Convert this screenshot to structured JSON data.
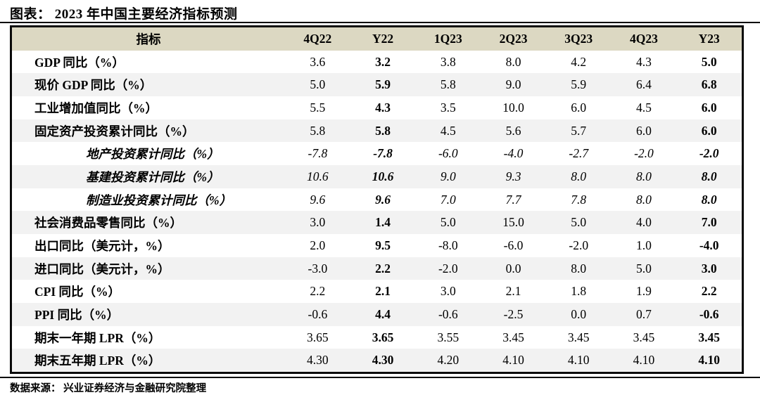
{
  "title": "图表： 2023 年中国主要经济指标预测",
  "source": "数据来源： 兴业证券经济与金融研究院整理",
  "colors": {
    "header_bg": "#dcd8c2",
    "stripe_bg": "#f2f2f2",
    "border": "#0a0a0a",
    "text": "#000000"
  },
  "chart_data": {
    "type": "table",
    "title": "2023 年中国主要经济指标预测",
    "columns": [
      "指标",
      "4Q22",
      "Y22",
      "1Q23",
      "2Q23",
      "3Q23",
      "4Q23",
      "Y23"
    ],
    "bold_columns": [
      "Y22",
      "Y23"
    ],
    "rows": [
      {
        "label": "GDP 同比（%）",
        "italic": false,
        "values": [
          "3.6",
          "3.2",
          "3.8",
          "8.0",
          "4.2",
          "4.3",
          "5.0"
        ]
      },
      {
        "label": "现价 GDP 同比（%）",
        "italic": false,
        "values": [
          "5.0",
          "5.9",
          "5.8",
          "9.0",
          "5.9",
          "6.4",
          "6.8"
        ]
      },
      {
        "label": "工业增加值同比（%）",
        "italic": false,
        "values": [
          "5.5",
          "4.3",
          "3.5",
          "10.0",
          "6.0",
          "4.5",
          "6.0"
        ]
      },
      {
        "label": "固定资产投资累计同比（%）",
        "italic": false,
        "values": [
          "5.8",
          "5.8",
          "4.5",
          "5.6",
          "5.7",
          "6.0",
          "6.0"
        ]
      },
      {
        "label": "地产投资累计同比（%）",
        "italic": true,
        "values": [
          "-7.8",
          "-7.8",
          "-6.0",
          "-4.0",
          "-2.7",
          "-2.0",
          "-2.0"
        ]
      },
      {
        "label": "基建投资累计同比（%）",
        "italic": true,
        "values": [
          "10.6",
          "10.6",
          "9.0",
          "9.3",
          "8.0",
          "8.0",
          "8.0"
        ]
      },
      {
        "label": "制造业投资累计同比（%）",
        "italic": true,
        "values": [
          "9.6",
          "9.6",
          "7.0",
          "7.7",
          "7.8",
          "8.0",
          "8.0"
        ]
      },
      {
        "label": "社会消费品零售同比（%）",
        "italic": false,
        "values": [
          "3.0",
          "1.4",
          "5.0",
          "15.0",
          "5.0",
          "4.0",
          "7.0"
        ]
      },
      {
        "label": "出口同比（美元计，%）",
        "italic": false,
        "values": [
          "2.0",
          "9.5",
          "-8.0",
          "-6.0",
          "-2.0",
          "1.0",
          "-4.0"
        ]
      },
      {
        "label": "进口同比（美元计，%）",
        "italic": false,
        "values": [
          "-3.0",
          "2.2",
          "-2.0",
          "0.0",
          "8.0",
          "5.0",
          "3.0"
        ]
      },
      {
        "label": "CPI 同比（%）",
        "italic": false,
        "values": [
          "2.2",
          "2.1",
          "3.0",
          "2.1",
          "1.8",
          "1.9",
          "2.2"
        ]
      },
      {
        "label": "PPI 同比（%）",
        "italic": false,
        "values": [
          "-0.6",
          "4.4",
          "-0.6",
          "-2.5",
          "0.0",
          "0.7",
          "-0.6"
        ]
      },
      {
        "label": "期末一年期 LPR（%）",
        "italic": false,
        "values": [
          "3.65",
          "3.65",
          "3.55",
          "3.45",
          "3.45",
          "3.45",
          "3.45"
        ]
      },
      {
        "label": "期末五年期 LPR（%）",
        "italic": false,
        "values": [
          "4.30",
          "4.30",
          "4.20",
          "4.10",
          "4.10",
          "4.10",
          "4.10"
        ]
      }
    ]
  }
}
